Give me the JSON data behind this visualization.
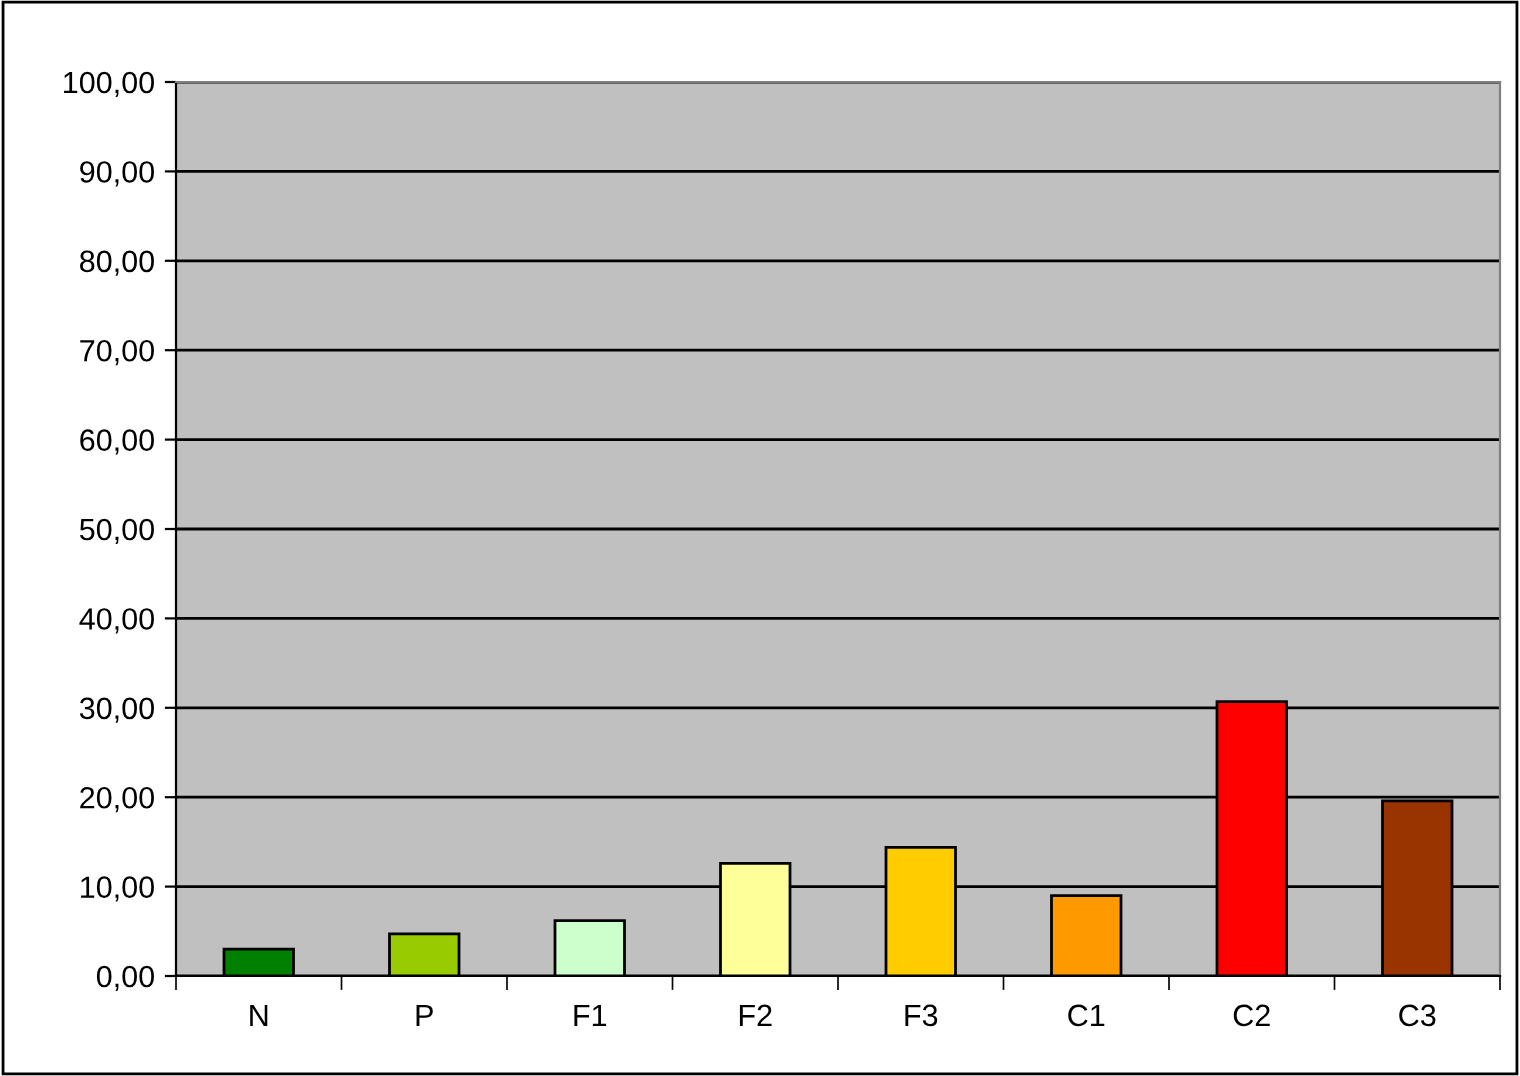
{
  "chart_data": {
    "type": "bar",
    "categories": [
      "N",
      "P",
      "F1",
      "F2",
      "F3",
      "C1",
      "C2",
      "C3"
    ],
    "values": [
      3.0,
      4.7,
      6.2,
      12.6,
      14.4,
      9.0,
      30.7,
      19.6
    ],
    "colors": [
      "#008000",
      "#99cc00",
      "#ccffcc",
      "#ffff99",
      "#ffcc00",
      "#ff9900",
      "#ff0000",
      "#993300"
    ],
    "ylim": [
      0,
      100
    ],
    "yticks": [
      {
        "value": 0,
        "label": "0,00"
      },
      {
        "value": 10,
        "label": "10,00"
      },
      {
        "value": 20,
        "label": "20,00"
      },
      {
        "value": 30,
        "label": "30,00"
      },
      {
        "value": 40,
        "label": "40,00"
      },
      {
        "value": 50,
        "label": "50,00"
      },
      {
        "value": 60,
        "label": "60,00"
      },
      {
        "value": 70,
        "label": "70,00"
      },
      {
        "value": 80,
        "label": "80,00"
      },
      {
        "value": 90,
        "label": "90,00"
      },
      {
        "value": 100,
        "label": "100,00"
      }
    ],
    "grid": "y"
  }
}
